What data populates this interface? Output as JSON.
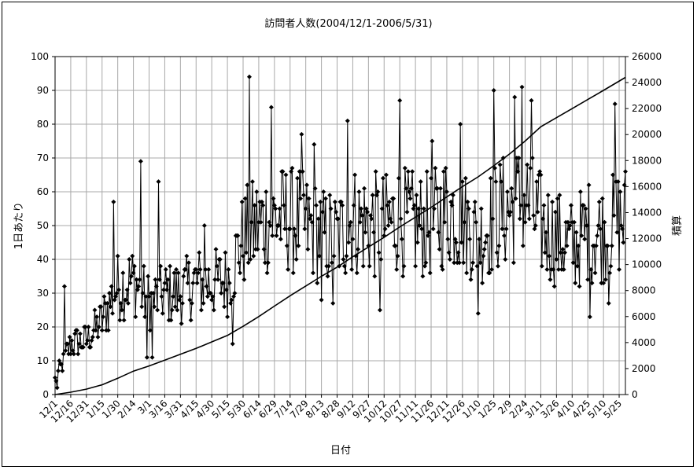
{
  "chart_data": {
    "type": "line",
    "title": "訪問者人数(2004/12/1-2006/5/31)",
    "xlabel": "日付",
    "ylabel": "1日あたり",
    "y2label": "積算",
    "ylim": [
      0,
      100
    ],
    "y2lim": [
      0,
      26000
    ],
    "yticks": [
      "0",
      "10",
      "20",
      "30",
      "40",
      "50",
      "60",
      "70",
      "80",
      "90",
      "100"
    ],
    "y2ticks": [
      "0",
      "2000",
      "4000",
      "6000",
      "8000",
      "10000",
      "12000",
      "14000",
      "16000",
      "18000",
      "20000",
      "22000",
      "24000",
      "26000"
    ],
    "x_date_range": [
      "2004-12-01",
      "2006-05-31"
    ],
    "xticks": [
      {
        "label": "12/1",
        "date": "2004-12-01"
      },
      {
        "label": "12/16",
        "date": "2004-12-16"
      },
      {
        "label": "12/31",
        "date": "2004-12-31"
      },
      {
        "label": "1/15",
        "date": "2005-01-15"
      },
      {
        "label": "1/30",
        "date": "2005-01-30"
      },
      {
        "label": "2/14",
        "date": "2005-02-14"
      },
      {
        "label": "3/1",
        "date": "2005-03-01"
      },
      {
        "label": "3/16",
        "date": "2005-03-16"
      },
      {
        "label": "3/31",
        "date": "2005-03-31"
      },
      {
        "label": "4/15",
        "date": "2005-04-15"
      },
      {
        "label": "4/30",
        "date": "2005-04-30"
      },
      {
        "label": "5/15",
        "date": "2005-05-15"
      },
      {
        "label": "5/30",
        "date": "2005-05-30"
      },
      {
        "label": "6/14",
        "date": "2005-06-14"
      },
      {
        "label": "6/29",
        "date": "2005-06-29"
      },
      {
        "label": "7/14",
        "date": "2005-07-14"
      },
      {
        "label": "7/29",
        "date": "2005-07-29"
      },
      {
        "label": "8/13",
        "date": "2005-08-13"
      },
      {
        "label": "8/28",
        "date": "2005-08-28"
      },
      {
        "label": "9/12",
        "date": "2005-09-12"
      },
      {
        "label": "9/27",
        "date": "2005-09-27"
      },
      {
        "label": "10/12",
        "date": "2005-10-12"
      },
      {
        "label": "10/27",
        "date": "2005-10-27"
      },
      {
        "label": "11/11",
        "date": "2005-11-11"
      },
      {
        "label": "11/26",
        "date": "2005-11-26"
      },
      {
        "label": "12/11",
        "date": "2005-12-11"
      },
      {
        "label": "12/26",
        "date": "2005-12-26"
      },
      {
        "label": "1/10",
        "date": "2006-01-10"
      },
      {
        "label": "1/25",
        "date": "2006-01-25"
      },
      {
        "label": "2/9",
        "date": "2006-02-09"
      },
      {
        "label": "2/24",
        "date": "2006-02-24"
      },
      {
        "label": "3/11",
        "date": "2006-03-11"
      },
      {
        "label": "3/26",
        "date": "2006-03-26"
      },
      {
        "label": "4/10",
        "date": "2006-04-10"
      },
      {
        "label": "4/25",
        "date": "2006-04-25"
      },
      {
        "label": "5/10",
        "date": "2006-05-10"
      },
      {
        "label": "5/25",
        "date": "2006-05-25"
      }
    ],
    "grid": true,
    "series": [
      {
        "axis": "left",
        "style": "line-with-diamond-markers",
        "color": "#000000",
        "trend_anchors": [
          {
            "date": "2004-12-01",
            "value": 4
          },
          {
            "date": "2004-12-16",
            "value": 15
          },
          {
            "date": "2004-12-31",
            "value": 16
          },
          {
            "date": "2005-01-15",
            "value": 22
          },
          {
            "date": "2005-01-30",
            "value": 32
          },
          {
            "date": "2005-02-14",
            "value": 34
          },
          {
            "date": "2005-03-01",
            "value": 27
          },
          {
            "date": "2005-03-16",
            "value": 30
          },
          {
            "date": "2005-03-31",
            "value": 30
          },
          {
            "date": "2005-04-15",
            "value": 33
          },
          {
            "date": "2005-04-30",
            "value": 33
          },
          {
            "date": "2005-05-15",
            "value": 34
          },
          {
            "date": "2005-05-30",
            "value": 46
          },
          {
            "date": "2005-06-14",
            "value": 50
          },
          {
            "date": "2005-06-29",
            "value": 52
          },
          {
            "date": "2005-07-14",
            "value": 52
          },
          {
            "date": "2005-07-29",
            "value": 50
          },
          {
            "date": "2005-08-13",
            "value": 47
          },
          {
            "date": "2005-08-28",
            "value": 46
          },
          {
            "date": "2005-09-12",
            "value": 52
          },
          {
            "date": "2005-09-27",
            "value": 50
          },
          {
            "date": "2005-10-12",
            "value": 50
          },
          {
            "date": "2005-10-27",
            "value": 52
          },
          {
            "date": "2005-11-11",
            "value": 50
          },
          {
            "date": "2005-11-26",
            "value": 50
          },
          {
            "date": "2005-12-11",
            "value": 55
          },
          {
            "date": "2005-12-26",
            "value": 52
          },
          {
            "date": "2006-01-10",
            "value": 46
          },
          {
            "date": "2006-01-25",
            "value": 52
          },
          {
            "date": "2006-02-09",
            "value": 55
          },
          {
            "date": "2006-02-24",
            "value": 58
          },
          {
            "date": "2006-03-11",
            "value": 50
          },
          {
            "date": "2006-03-26",
            "value": 46
          },
          {
            "date": "2006-04-10",
            "value": 44
          },
          {
            "date": "2006-04-25",
            "value": 48
          },
          {
            "date": "2006-05-10",
            "value": 48
          },
          {
            "date": "2006-05-31",
            "value": 52
          }
        ],
        "peaks": [
          {
            "date": "2004-12-10",
            "value": 32
          },
          {
            "date": "2005-01-26",
            "value": 57
          },
          {
            "date": "2005-02-21",
            "value": 69
          },
          {
            "date": "2005-03-10",
            "value": 63
          },
          {
            "date": "2005-04-23",
            "value": 50
          },
          {
            "date": "2005-06-05",
            "value": 94
          },
          {
            "date": "2005-06-26",
            "value": 85
          },
          {
            "date": "2005-07-25",
            "value": 77
          },
          {
            "date": "2005-08-06",
            "value": 74
          },
          {
            "date": "2005-09-07",
            "value": 81
          },
          {
            "date": "2005-10-27",
            "value": 87
          },
          {
            "date": "2005-11-27",
            "value": 75
          },
          {
            "date": "2005-12-24",
            "value": 80
          },
          {
            "date": "2006-01-25",
            "value": 90
          },
          {
            "date": "2006-02-14",
            "value": 88
          },
          {
            "date": "2006-02-21",
            "value": 91
          },
          {
            "date": "2006-03-02",
            "value": 87
          },
          {
            "date": "2006-05-21",
            "value": 86
          }
        ],
        "troughs": [
          {
            "date": "2004-12-03",
            "value": 2
          },
          {
            "date": "2005-02-27",
            "value": 11
          },
          {
            "date": "2005-03-04",
            "value": 11
          },
          {
            "date": "2005-05-20",
            "value": 15
          },
          {
            "date": "2005-08-13",
            "value": 28
          },
          {
            "date": "2005-08-24",
            "value": 27
          },
          {
            "date": "2005-10-08",
            "value": 25
          },
          {
            "date": "2006-01-10",
            "value": 24
          },
          {
            "date": "2006-04-27",
            "value": 23
          },
          {
            "date": "2006-05-15",
            "value": 27
          }
        ]
      },
      {
        "axis": "right",
        "style": "line",
        "color": "#000000",
        "values": [
          {
            "date": "2004-12-01",
            "value": 0
          },
          {
            "date": "2004-12-16",
            "value": 180
          },
          {
            "date": "2004-12-31",
            "value": 420
          },
          {
            "date": "2005-01-15",
            "value": 750
          },
          {
            "date": "2005-01-30",
            "value": 1250
          },
          {
            "date": "2005-02-14",
            "value": 1800
          },
          {
            "date": "2005-03-01",
            "value": 2200
          },
          {
            "date": "2005-03-16",
            "value": 2650
          },
          {
            "date": "2005-03-31",
            "value": 3100
          },
          {
            "date": "2005-04-15",
            "value": 3550
          },
          {
            "date": "2005-04-30",
            "value": 4050
          },
          {
            "date": "2005-05-15",
            "value": 4550
          },
          {
            "date": "2005-05-30",
            "value": 5250
          },
          {
            "date": "2005-06-14",
            "value": 6000
          },
          {
            "date": "2005-06-29",
            "value": 6800
          },
          {
            "date": "2005-07-14",
            "value": 7600
          },
          {
            "date": "2005-07-29",
            "value": 8350
          },
          {
            "date": "2005-08-13",
            "value": 9100
          },
          {
            "date": "2005-08-28",
            "value": 9800
          },
          {
            "date": "2005-09-12",
            "value": 10600
          },
          {
            "date": "2005-09-27",
            "value": 11350
          },
          {
            "date": "2005-10-12",
            "value": 12100
          },
          {
            "date": "2005-10-27",
            "value": 12900
          },
          {
            "date": "2005-11-11",
            "value": 13650
          },
          {
            "date": "2005-11-26",
            "value": 14400
          },
          {
            "date": "2005-12-11",
            "value": 15200
          },
          {
            "date": "2005-12-26",
            "value": 16000
          },
          {
            "date": "2006-01-10",
            "value": 16750
          },
          {
            "date": "2006-01-25",
            "value": 17600
          },
          {
            "date": "2006-02-09",
            "value": 18500
          },
          {
            "date": "2006-02-24",
            "value": 19500
          },
          {
            "date": "2006-03-11",
            "value": 20600
          },
          {
            "date": "2006-03-26",
            "value": 21300
          },
          {
            "date": "2006-04-10",
            "value": 22000
          },
          {
            "date": "2006-04-25",
            "value": 22700
          },
          {
            "date": "2006-05-10",
            "value": 23400
          },
          {
            "date": "2006-05-31",
            "value": 24400
          }
        ]
      }
    ]
  }
}
